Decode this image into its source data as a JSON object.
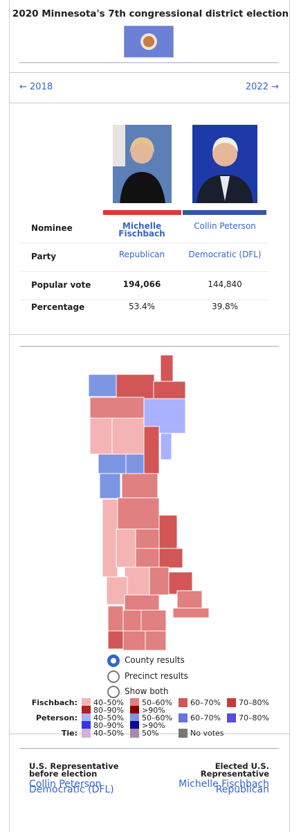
{
  "title": "2020 Minnesota's 7th congressional district election",
  "nav": {
    "previous": "← 2018",
    "next": "2022 →"
  },
  "table": {
    "rows": [
      [
        "Nominee",
        "Michelle Fischbach",
        "Collin Peterson"
      ],
      [
        "Party",
        "Republican",
        "Democratic (DFL)"
      ],
      [
        "Popular vote",
        "194,066",
        "144,840"
      ],
      [
        "Percentage",
        "53.4%",
        "39.8%"
      ]
    ]
  },
  "map": {
    "options": [
      "County results",
      "Precinct results",
      "Show both"
    ],
    "legend": [
      {
        "label": "Fischbach:",
        "items": [
          "40–50%",
          "50–60%",
          "60–70%",
          "70–80%",
          "80–90%",
          ">90%"
        ]
      },
      {
        "label": "Peterson:",
        "items": [
          "40–50%",
          "50–60%",
          "60–70%",
          "70–80%",
          "80–90%",
          ">90%"
        ]
      },
      {
        "label": "Tie:",
        "items": [
          "40–50%",
          "50%",
          "No votes"
        ]
      }
    ]
  },
  "footer": {
    "before": {
      "heading": "U.S. Representative before election",
      "name": "Collin Peterson",
      "party": "Democratic (DFL)"
    },
    "after": {
      "heading": "Elected U.S. Representative",
      "name": "Michelle Fischbach",
      "party": "Republican"
    }
  }
}
